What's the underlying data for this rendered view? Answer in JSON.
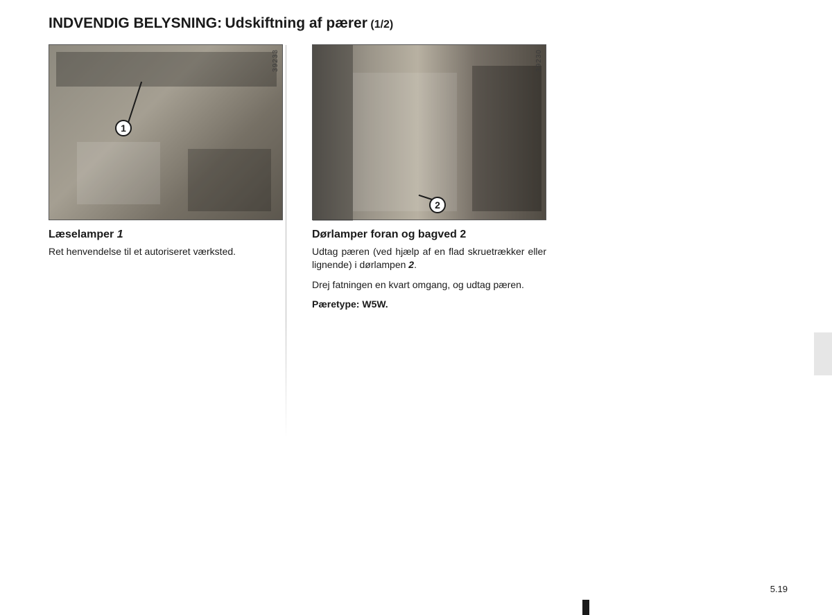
{
  "title": {
    "main": "INDVENDIG BELYSNING:",
    "sub": "Udskiftning af pærer",
    "page_indicator": "(1/2)"
  },
  "page_number": "5.19",
  "figures": {
    "fig1": {
      "id": "39233",
      "callout": "1"
    },
    "fig2": {
      "id": "39230",
      "callout": "2"
    }
  },
  "col1": {
    "heading_text": "Læselamper",
    "heading_ref": "1",
    "body": "Ret henvendelse til et autoriseret værksted."
  },
  "col2": {
    "heading_text": "Dørlamper foran og bagved 2",
    "body1_a": "Udtag pæren (ved hjælp af en flad skrue­trækker eller lignende) i dørlampen ",
    "body1_ref": "2",
    "body1_b": ".",
    "body2": "Drej fatningen en kvart omgang, og udtag pæren.",
    "bulb_type": "Pæretype: W5W."
  },
  "colors": {
    "text": "#1a1a1a",
    "divider": "#bdbdbd",
    "side_tab": "#e6e6e6",
    "background": "#ffffff"
  }
}
